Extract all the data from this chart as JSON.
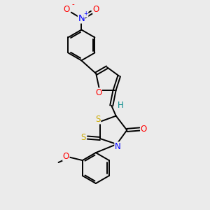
{
  "bg_color": "#ebebeb",
  "bond_color": "#000000",
  "bond_width": 1.4,
  "atom_colors": {
    "O": "#ff0000",
    "N": "#0000ff",
    "S": "#ccaa00",
    "H": "#008888",
    "C": "#000000"
  },
  "font_size": 8.5,
  "figsize": [
    3.0,
    3.0
  ],
  "dpi": 100
}
